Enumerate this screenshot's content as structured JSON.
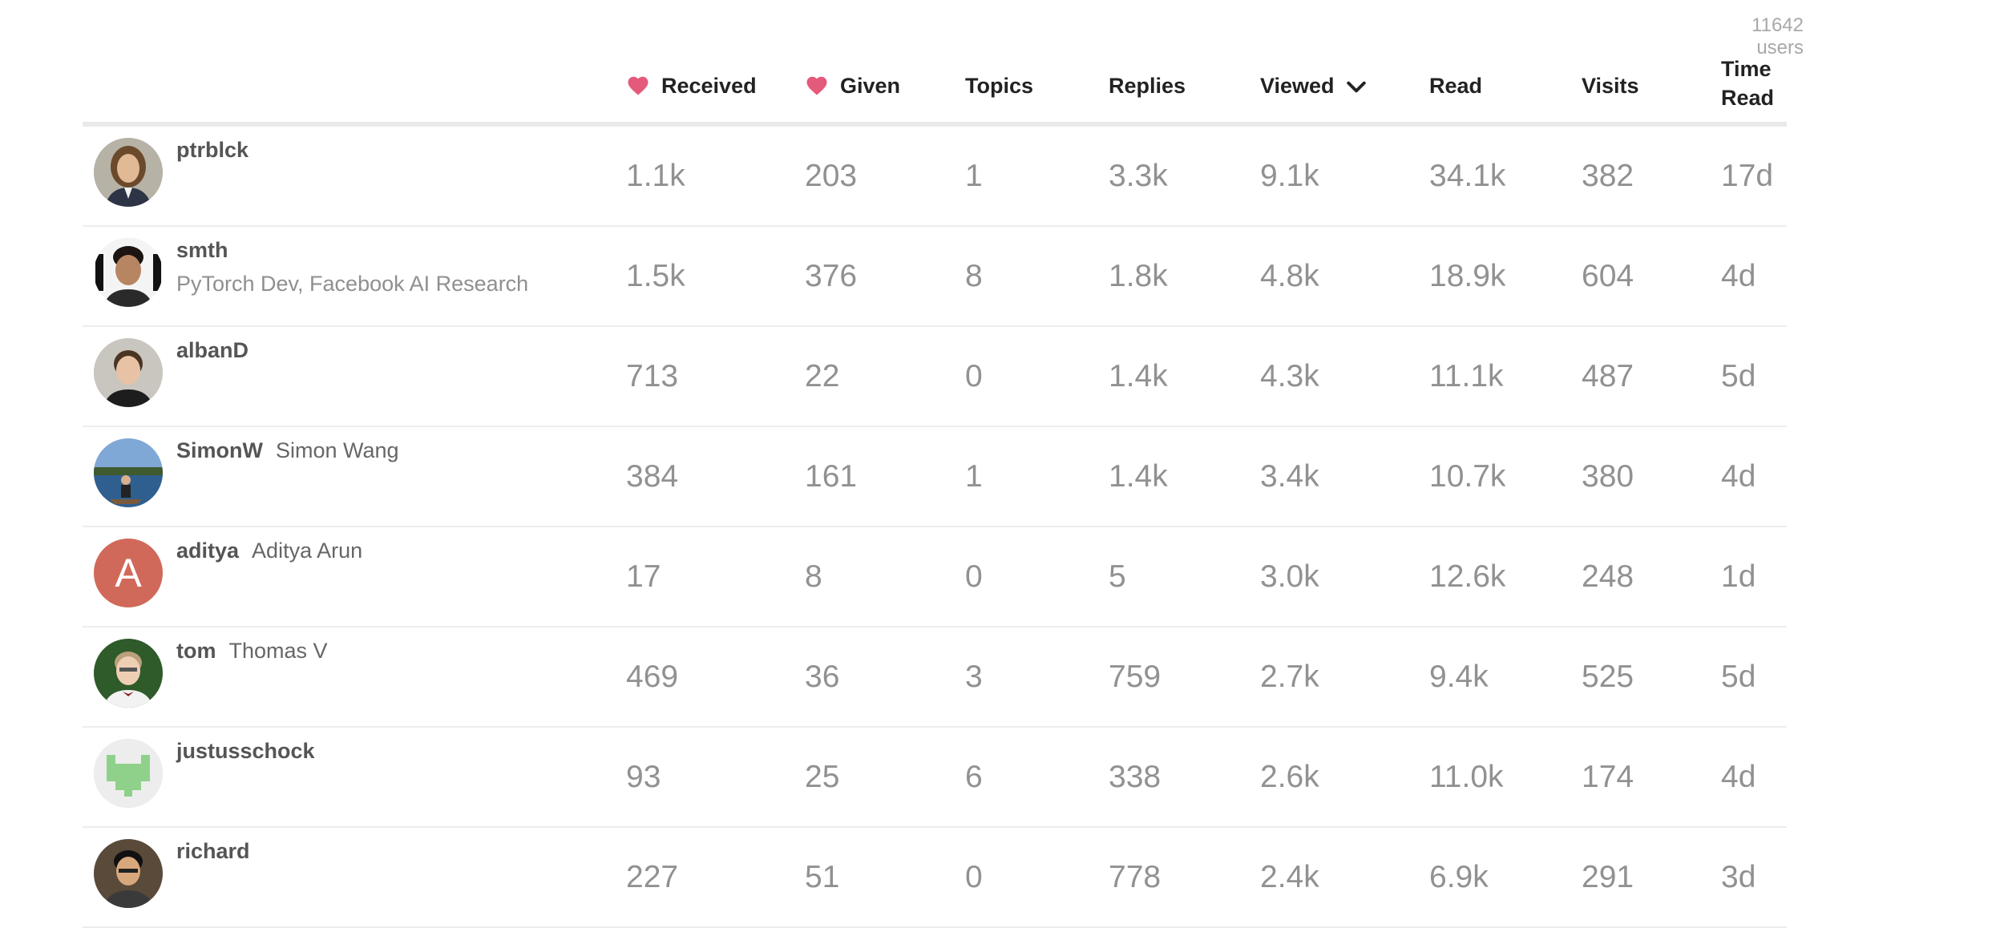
{
  "user_count": "11642 users",
  "columns": {
    "received": "Received",
    "given": "Given",
    "topics": "Topics",
    "replies": "Replies",
    "viewed": "Viewed",
    "read": "Read",
    "visits": "Visits",
    "time_read_1": "Time",
    "time_read_2": "Read"
  },
  "icons": {
    "heart": "heart-icon",
    "sort": "chevron-down-icon"
  },
  "colors": {
    "heart": "#e45a7b",
    "avatar_letter_bg": "#d1695a",
    "identicon": "#8fd18a"
  },
  "rows": [
    {
      "username": "ptrblck",
      "name": "",
      "title": "",
      "received": "1.1k",
      "given": "203",
      "topics": "1",
      "replies": "3.3k",
      "viewed": "9.1k",
      "read": "34.1k",
      "visits": "382",
      "time_read": "17d"
    },
    {
      "username": "smth",
      "name": "",
      "title": "PyTorch Dev, Facebook AI Research",
      "received": "1.5k",
      "given": "376",
      "topics": "8",
      "replies": "1.8k",
      "viewed": "4.8k",
      "read": "18.9k",
      "visits": "604",
      "time_read": "4d"
    },
    {
      "username": "albanD",
      "name": "",
      "title": "",
      "received": "713",
      "given": "22",
      "topics": "0",
      "replies": "1.4k",
      "viewed": "4.3k",
      "read": "11.1k",
      "visits": "487",
      "time_read": "5d"
    },
    {
      "username": "SimonW",
      "name": "Simon Wang",
      "title": "",
      "received": "384",
      "given": "161",
      "topics": "1",
      "replies": "1.4k",
      "viewed": "3.4k",
      "read": "10.7k",
      "visits": "380",
      "time_read": "4d"
    },
    {
      "username": "aditya",
      "name": "Aditya Arun",
      "title": "",
      "avatar_letter": "A",
      "received": "17",
      "given": "8",
      "topics": "0",
      "replies": "5",
      "viewed": "3.0k",
      "read": "12.6k",
      "visits": "248",
      "time_read": "1d"
    },
    {
      "username": "tom",
      "name": "Thomas V",
      "title": "",
      "received": "469",
      "given": "36",
      "topics": "3",
      "replies": "759",
      "viewed": "2.7k",
      "read": "9.4k",
      "visits": "525",
      "time_read": "5d"
    },
    {
      "username": "justusschock",
      "name": "",
      "title": "",
      "received": "93",
      "given": "25",
      "topics": "6",
      "replies": "338",
      "viewed": "2.6k",
      "read": "11.0k",
      "visits": "174",
      "time_read": "4d"
    },
    {
      "username": "richard",
      "name": "",
      "title": "",
      "received": "227",
      "given": "51",
      "topics": "0",
      "replies": "778",
      "viewed": "2.4k",
      "read": "6.9k",
      "visits": "291",
      "time_read": "3d"
    }
  ]
}
